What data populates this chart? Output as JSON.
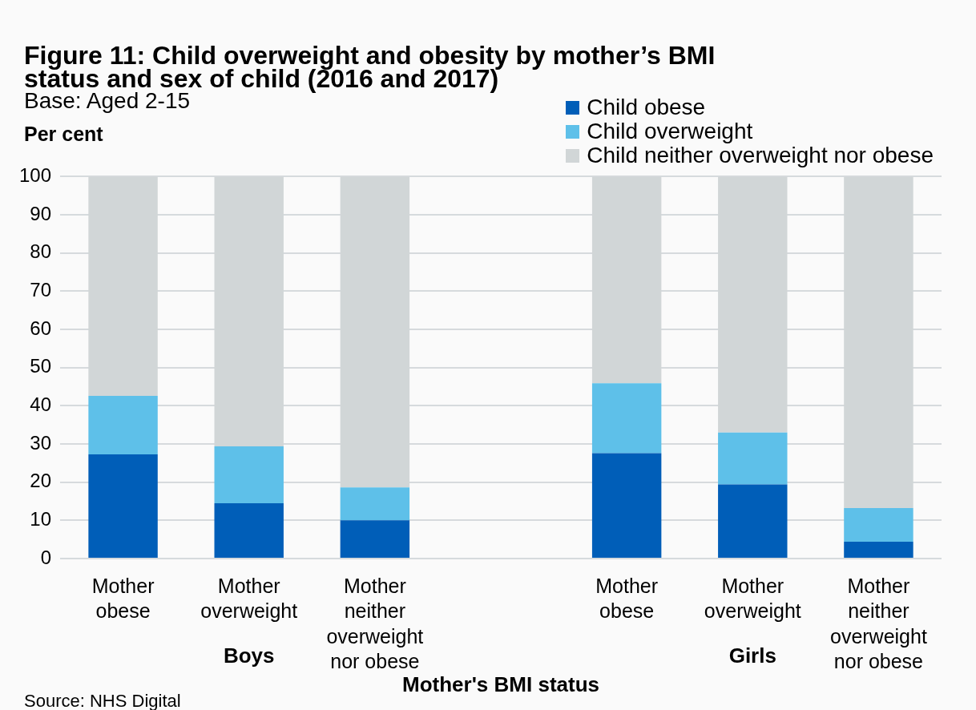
{
  "chart_data": {
    "type": "bar",
    "title": "Figure 11: Child overweight and obesity by mother’s BMI status and sex of child (2016 and 2017)",
    "subtitle": "Base: Aged 2-15",
    "ylabel": "Per cent",
    "xlabel": "Mother's BMI status",
    "categories": [
      "Mother obese",
      "Mother overweight",
      "Mother neither overweight nor obese",
      null,
      "Mother obese",
      "Mother overweight",
      "Mother neither overweight nor obese"
    ],
    "series": [
      {
        "name": "Child obese",
        "color": "#005eb8",
        "values": [
          27.3,
          14.5,
          10.0,
          null,
          27.6,
          19.4,
          4.4
        ]
      },
      {
        "name": "Child overweight",
        "color": "#5ec0e9",
        "values": [
          15.3,
          14.9,
          8.6,
          null,
          18.3,
          13.6,
          8.8
        ]
      },
      {
        "name": "Child neither overweight nor obese",
        "color": "#d1d6d7",
        "values": [
          57.4,
          70.6,
          81.4,
          null,
          54.1,
          67.0,
          86.8
        ]
      }
    ],
    "stacked": true,
    "ylim": [
      0,
      100
    ],
    "yticks": [
      0,
      10,
      20,
      30,
      40,
      50,
      60,
      70,
      80,
      90,
      100
    ],
    "grid": "y",
    "legend": "top right",
    "annotations": [
      "Boys",
      "Girls",
      "Source: NHS Digital"
    ]
  }
}
